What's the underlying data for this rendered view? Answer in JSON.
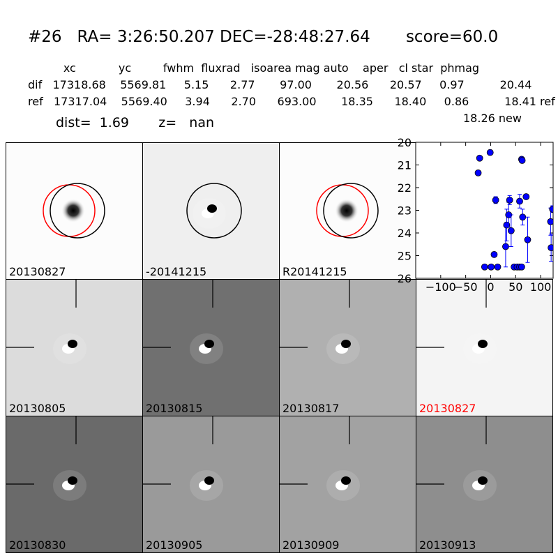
{
  "title": "#26   RA= 3:26:50.207 DEC=-28:48:27.64       score=60.0",
  "stats": {
    "header": "          xc            yc         fwhm  fluxrad   isoarea mag auto    aper   cl star  phmag",
    "rows": [
      {
        "label": "dif",
        "values": "17318.68    5569.81     5.15      2.77       97.00       20.56      20.57     0.97          20.44"
      },
      {
        "label": "ref",
        "values": "17317.04    5569.40     3.94      2.70      693.00       18.35      18.40     0.86          18.41 ref"
      }
    ],
    "phmag_new": "18.26 new",
    "dist_line": "dist=  1.69       z=   nan"
  },
  "top_stamps": [
    {
      "label": "20130827",
      "bg": "#fcfcfc",
      "circle_black": true,
      "circle_red": true,
      "style": "star"
    },
    {
      "label": "-20141215",
      "bg": "#efefef",
      "circle_black": true,
      "circle_red": false,
      "style": "dipole"
    },
    {
      "label": "R20141215",
      "bg": "#fcfcfc",
      "circle_black": true,
      "circle_red": true,
      "style": "star"
    }
  ],
  "grid_stamps": [
    {
      "label": "20130805",
      "bg": "#dcdcdc",
      "label_color": "#000000"
    },
    {
      "label": "20130815",
      "bg": "#707070",
      "label_color": "#000000"
    },
    {
      "label": "20130817",
      "bg": "#b0b0b0",
      "label_color": "#000000"
    },
    {
      "label": "20130827",
      "bg": "#f4f4f4",
      "label_color": "#ff0000"
    },
    {
      "label": "20130830",
      "bg": "#6a6a6a",
      "label_color": "#000000"
    },
    {
      "label": "20130905",
      "bg": "#9a9a9a",
      "label_color": "#000000"
    },
    {
      "label": "20130909",
      "bg": "#a2a2a2",
      "label_color": "#000000"
    },
    {
      "label": "20130913",
      "bg": "#8e8e8e",
      "label_color": "#000000"
    }
  ],
  "chart_data": {
    "type": "scatter",
    "xlim": [
      -150,
      125
    ],
    "ylim": [
      26,
      20
    ],
    "xticks": [
      -100,
      -50,
      0,
      50,
      100
    ],
    "yticks": [
      20,
      21,
      22,
      23,
      24,
      25,
      26
    ],
    "color": "#0000ff",
    "points": [
      {
        "x": -25,
        "y": 21.35,
        "err": 0
      },
      {
        "x": -22,
        "y": 20.7,
        "err": 0
      },
      {
        "x": -1,
        "y": 20.45,
        "err": 0
      },
      {
        "x": -12,
        "y": 25.5,
        "err": 0
      },
      {
        "x": 1,
        "y": 25.5,
        "err": 0
      },
      {
        "x": 7,
        "y": 24.95,
        "err": 0
      },
      {
        "x": 10,
        "y": 22.55,
        "err": 0.15
      },
      {
        "x": 14,
        "y": 25.5,
        "err": 0
      },
      {
        "x": 30,
        "y": 24.6,
        "err": 0.9
      },
      {
        "x": 32,
        "y": 23.65,
        "err": 0.7
      },
      {
        "x": 36,
        "y": 23.2,
        "err": 0.55
      },
      {
        "x": 38,
        "y": 22.55,
        "err": 0.2
      },
      {
        "x": 41,
        "y": 23.9,
        "err": 0.7
      },
      {
        "x": 47,
        "y": 25.5,
        "err": 0
      },
      {
        "x": 53,
        "y": 25.5,
        "err": 0
      },
      {
        "x": 58,
        "y": 22.6,
        "err": 0.3
      },
      {
        "x": 58,
        "y": 25.5,
        "err": 0
      },
      {
        "x": 62,
        "y": 25.5,
        "err": 0
      },
      {
        "x": 62,
        "y": 20.75,
        "err": 0.05
      },
      {
        "x": 63,
        "y": 20.8,
        "err": 0
      },
      {
        "x": 64,
        "y": 23.3,
        "err": 0.35
      },
      {
        "x": 71,
        "y": 22.4,
        "err": 0.1
      },
      {
        "x": 74,
        "y": 24.3,
        "err": 1.0
      },
      {
        "x": 120,
        "y": 23.5,
        "err": 0.6
      },
      {
        "x": 121,
        "y": 24.65,
        "err": 0.6
      },
      {
        "x": 124,
        "y": 22.95,
        "err": 0.15
      }
    ]
  }
}
